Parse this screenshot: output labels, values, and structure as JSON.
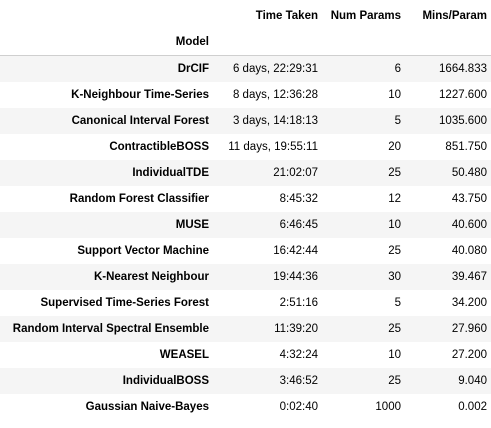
{
  "table": {
    "columns": [
      "Time Taken",
      "Num Params",
      "Mins/Param"
    ],
    "index_name": "Model",
    "rows": [
      {
        "model": "DrCIF",
        "time": "6 days, 22:29:31",
        "params": "6",
        "ratio": "1664.833"
      },
      {
        "model": "K-Neighbour Time-Series",
        "time": "8 days, 12:36:28",
        "params": "10",
        "ratio": "1227.600"
      },
      {
        "model": "Canonical Interval Forest",
        "time": "3 days, 14:18:13",
        "params": "5",
        "ratio": "1035.600"
      },
      {
        "model": "ContractibleBOSS",
        "time": "11 days, 19:55:11",
        "params": "20",
        "ratio": "851.750"
      },
      {
        "model": "IndividualTDE",
        "time": "21:02:07",
        "params": "25",
        "ratio": "50.480"
      },
      {
        "model": "Random Forest Classifier",
        "time": "8:45:32",
        "params": "12",
        "ratio": "43.750"
      },
      {
        "model": "MUSE",
        "time": "6:46:45",
        "params": "10",
        "ratio": "40.600"
      },
      {
        "model": "Support Vector Machine",
        "time": "16:42:44",
        "params": "25",
        "ratio": "40.080"
      },
      {
        "model": "K-Nearest Neighbour",
        "time": "19:44:36",
        "params": "30",
        "ratio": "39.467"
      },
      {
        "model": "Supervised Time-Series Forest",
        "time": "2:51:16",
        "params": "5",
        "ratio": "34.200"
      },
      {
        "model": "Random Interval Spectral Ensemble",
        "time": "11:39:20",
        "params": "25",
        "ratio": "27.960"
      },
      {
        "model": "WEASEL",
        "time": "4:32:24",
        "params": "10",
        "ratio": "27.200"
      },
      {
        "model": "IndividualBOSS",
        "time": "3:46:52",
        "params": "25",
        "ratio": "9.040"
      },
      {
        "model": "Gaussian Naive-Bayes",
        "time": "0:02:40",
        "params": "1000",
        "ratio": "0.002"
      }
    ]
  }
}
